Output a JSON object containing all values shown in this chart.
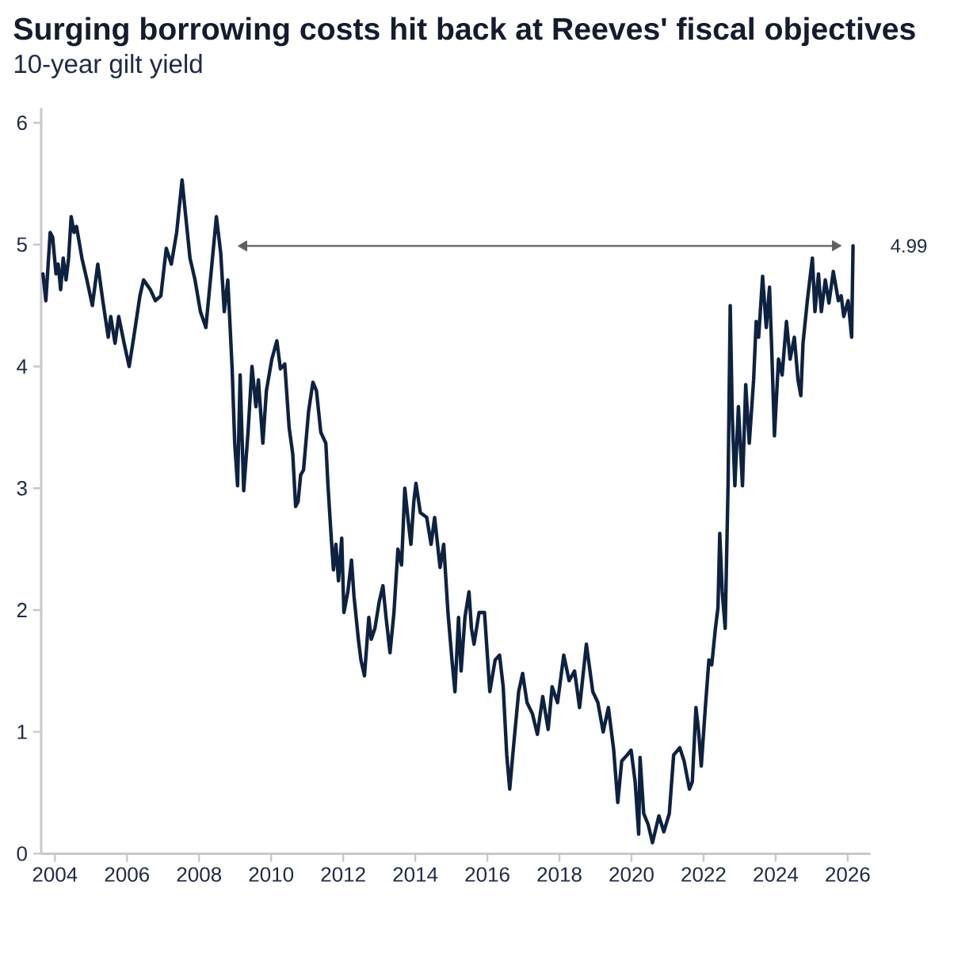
{
  "chart_data": {
    "type": "line",
    "title": "Surging borrowing costs hit back at Reeves' fiscal objectives",
    "subtitle": "10-year gilt yield",
    "xlim": [
      "2003-08-15",
      "2026-08-20"
    ],
    "xticks": [
      "2004",
      "2006",
      "2008",
      "2010",
      "2012",
      "2014",
      "2016",
      "2018",
      "2020",
      "2022",
      "2024",
      "2026"
    ],
    "ylim": [
      0,
      6.12
    ],
    "yticks": [
      0,
      1,
      2,
      3,
      4,
      5,
      6
    ],
    "annotations": [
      {
        "text": "4.99",
        "x": "2026-02-24",
        "y": 4.99
      }
    ],
    "series": [
      {
        "color": "#0d2240",
        "x": [
          "2003-09-02",
          "2003-10-01",
          "2003-11-14",
          "2003-12-09",
          "2004-01-12",
          "2004-02-03",
          "2004-02-28",
          "2004-03-25",
          "2004-04-23",
          "2004-05-19",
          "2004-06-14",
          "2004-07-13",
          "2004-08-07",
          "2004-10-01",
          "2004-11-21",
          "2005-01-15",
          "2005-03-11",
          "2005-05-01",
          "2005-06-25",
          "2005-07-20",
          "2005-09-02",
          "2005-10-09",
          "2005-12-03",
          "2006-01-23",
          "2006-03-18",
          "2006-05-12",
          "2006-06-18",
          "2006-08-26",
          "2006-10-16",
          "2006-12-10",
          "2007-02-03",
          "2007-03-26",
          "2007-05-19",
          "2007-07-13",
          "2007-08-08",
          "2007-10-01",
          "2007-11-21",
          "2008-01-15",
          "2008-03-10",
          "2008-05-01",
          "2008-06-25",
          "2008-08-08",
          "2008-09-13",
          "2008-10-19",
          "2008-12-02",
          "2008-12-28",
          "2009-01-26",
          "2009-02-21",
          "2009-03-29",
          "2009-05-12",
          "2009-06-21",
          "2009-07-31",
          "2009-08-25",
          "2009-10-09",
          "2009-11-14",
          "2010-01-08",
          "2010-02-28",
          "2010-04-05",
          "2010-05-19",
          "2010-07-02",
          "2010-08-08",
          "2010-09-06",
          "2010-10-01",
          "2010-10-27",
          "2010-11-25",
          "2011-01-15",
          "2011-02-28",
          "2011-04-05",
          "2011-05-19",
          "2011-07-09",
          "2011-07-31",
          "2011-09-02",
          "2011-09-24",
          "2011-10-19",
          "2011-11-14",
          "2011-12-17",
          "2012-01-08",
          "2012-02-17",
          "2012-03-25",
          "2012-04-20",
          "2012-06-03",
          "2012-06-29",
          "2012-08-04",
          "2012-09-17",
          "2012-10-12",
          "2012-11-18",
          "2013-01-01",
          "2013-02-07",
          "2013-03-11",
          "2013-04-20",
          "2013-05-30",
          "2013-07-09",
          "2013-08-15",
          "2013-09-17",
          "2013-10-23",
          "2013-11-18",
          "2013-12-17",
          "2014-01-08",
          "2014-02-21",
          "2014-04-27",
          "2014-06-10",
          "2014-07-16",
          "2014-09-09",
          "2014-10-16",
          "2014-11-28",
          "2015-01-12",
          "2015-02-07",
          "2015-03-15",
          "2015-04-10",
          "2015-05-19",
          "2015-06-29",
          "2015-07-24",
          "2015-08-19",
          "2015-10-09",
          "2015-12-03",
          "2016-01-26",
          "2016-03-20",
          "2016-05-04",
          "2016-06-10",
          "2016-07-16",
          "2016-08-15",
          "2016-09-24",
          "2016-11-14",
          "2016-12-24",
          "2017-02-07",
          "2017-04-02",
          "2017-05-23",
          "2017-07-16",
          "2017-09-09",
          "2017-10-19",
          "2017-12-13",
          "2018-02-14",
          "2018-04-09",
          "2018-06-03",
          "2018-07-24",
          "2018-10-01",
          "2018-12-05",
          "2019-01-26",
          "2019-03-20",
          "2019-05-12",
          "2019-07-05",
          "2019-08-15",
          "2019-09-24",
          "2019-11-18",
          "2019-12-28",
          "2020-02-07",
          "2020-03-14",
          "2020-03-28",
          "2020-05-04",
          "2020-06-18",
          "2020-08-01",
          "2020-10-05",
          "2020-11-25",
          "2021-01-19",
          "2021-03-04",
          "2021-05-05",
          "2021-06-18",
          "2021-08-11",
          "2021-09-09",
          "2021-10-16",
          "2021-11-10",
          "2021-12-09",
          "2022-01-19",
          "2022-02-24",
          "2022-03-25",
          "2022-05-01",
          "2022-05-27",
          "2022-06-14",
          "2022-07-09",
          "2022-08-08",
          "2022-09-06",
          "2022-09-28",
          "2022-10-19",
          "2022-11-14",
          "2022-12-20",
          "2023-01-30",
          "2023-03-04",
          "2023-04-09",
          "2023-05-23",
          "2023-06-18",
          "2023-07-13",
          "2023-08-22",
          "2023-09-28",
          "2023-10-31",
          "2023-11-22",
          "2023-12-20",
          "2024-01-30",
          "2024-03-07",
          "2024-04-20",
          "2024-05-27",
          "2024-07-09",
          "2024-08-15",
          "2024-09-13",
          "2024-10-05",
          "2024-11-18",
          "2025-01-08",
          "2025-02-03",
          "2025-03-11",
          "2025-04-09",
          "2025-05-19",
          "2025-06-25",
          "2025-08-08",
          "2025-09-28",
          "2025-10-27",
          "2025-11-22",
          "2026-01-05",
          "2026-02-10",
          "2026-02-24"
        ],
        "values": [
          4.76,
          4.54,
          5.1,
          5.06,
          4.76,
          4.84,
          4.63,
          4.89,
          4.71,
          4.89,
          5.23,
          5.1,
          5.15,
          4.89,
          4.71,
          4.5,
          4.84,
          4.54,
          4.24,
          4.41,
          4.19,
          4.41,
          4.19,
          4.0,
          4.28,
          4.58,
          4.71,
          4.63,
          4.54,
          4.58,
          4.97,
          4.84,
          5.1,
          5.53,
          5.32,
          4.89,
          4.71,
          4.45,
          4.32,
          4.76,
          5.23,
          4.93,
          4.45,
          4.71,
          3.98,
          3.37,
          3.02,
          3.93,
          2.98,
          3.46,
          4.0,
          3.67,
          3.89,
          3.37,
          3.8,
          4.06,
          4.21,
          3.98,
          4.02,
          3.5,
          3.28,
          2.85,
          2.89,
          3.11,
          3.15,
          3.63,
          3.87,
          3.8,
          3.46,
          3.37,
          3.02,
          2.59,
          2.33,
          2.54,
          2.24,
          2.59,
          1.98,
          2.15,
          2.41,
          2.11,
          1.76,
          1.59,
          1.46,
          1.94,
          1.76,
          1.85,
          2.07,
          2.2,
          1.94,
          1.65,
          1.98,
          2.5,
          2.37,
          3.0,
          2.72,
          2.54,
          2.89,
          3.04,
          2.8,
          2.76,
          2.54,
          2.76,
          2.35,
          2.54,
          1.98,
          1.55,
          1.33,
          1.94,
          1.5,
          1.94,
          2.15,
          1.85,
          1.72,
          1.98,
          1.98,
          1.33,
          1.59,
          1.63,
          1.37,
          0.81,
          0.53,
          0.89,
          1.33,
          1.48,
          1.24,
          1.15,
          0.98,
          1.29,
          1.02,
          1.37,
          1.24,
          1.63,
          1.42,
          1.5,
          1.2,
          1.72,
          1.33,
          1.24,
          1.0,
          1.2,
          0.85,
          0.42,
          0.76,
          0.81,
          0.85,
          0.59,
          0.16,
          0.79,
          0.33,
          0.24,
          0.09,
          0.31,
          0.18,
          0.33,
          0.81,
          0.87,
          0.76,
          0.53,
          0.59,
          1.2,
          1.02,
          0.72,
          1.2,
          1.59,
          1.55,
          1.85,
          2.02,
          2.63,
          2.15,
          1.85,
          3.02,
          4.5,
          3.59,
          3.02,
          3.67,
          3.02,
          3.85,
          3.37,
          3.89,
          4.37,
          4.24,
          4.74,
          4.32,
          4.65,
          4.15,
          3.43,
          4.06,
          3.93,
          4.37,
          4.06,
          4.24,
          3.89,
          3.76,
          4.19,
          4.54,
          4.89,
          4.45,
          4.76,
          4.45,
          4.71,
          4.52,
          4.78,
          4.54,
          4.58,
          4.41,
          4.54,
          4.24,
          4.99
        ]
      },
      {
        "type": "line",
        "color": "#5f5f5f",
        "marker": "triangle",
        "x": [
          "2009-04-01",
          "2025-08-28"
        ],
        "values": [
          4.99,
          4.99
        ]
      }
    ]
  }
}
